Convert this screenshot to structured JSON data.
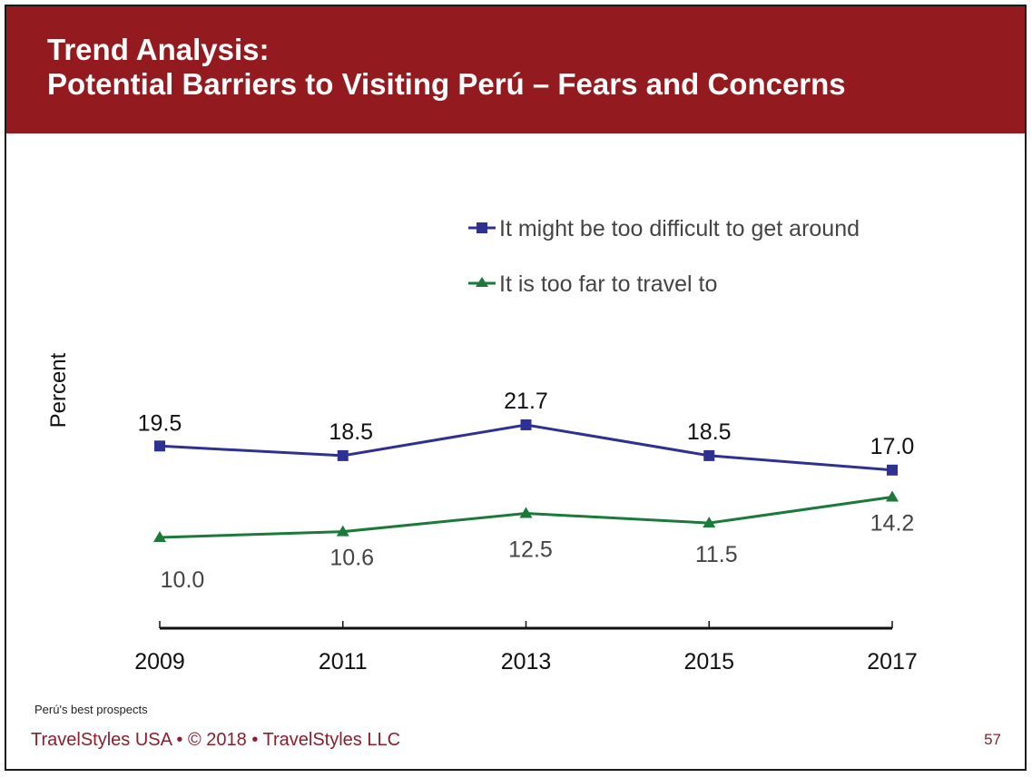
{
  "header": {
    "title_line1": "Trend Analysis:",
    "title_line2": "Potential Barriers to Visiting Perú – Fears and Concerns"
  },
  "colors": {
    "header_bg": "#931A1E",
    "series_blue": "#2E3192",
    "series_green": "#1B7A3A",
    "footer_text": "#8F1D2A"
  },
  "chart_data": {
    "type": "line",
    "title": "Potential Barriers to Visiting Perú – Fears and Concerns",
    "xlabel": "",
    "ylabel": "Percent",
    "x": [
      "2009",
      "2011",
      "2013",
      "2015",
      "2017"
    ],
    "ylim": [
      0,
      25
    ],
    "grid": false,
    "legend_position": "top-right",
    "series": [
      {
        "name": "It might be too difficult to get around",
        "marker": "square",
        "color": "#2E3192",
        "values": [
          19.5,
          18.5,
          21.7,
          18.5,
          17.0
        ],
        "labels": [
          "19.5",
          "18.5",
          "21.7",
          "18.5",
          "17.0"
        ]
      },
      {
        "name": "It is too far to travel to",
        "marker": "triangle",
        "color": "#1B7A3A",
        "values": [
          10.0,
          10.6,
          12.5,
          11.5,
          14.2
        ],
        "labels": [
          "10.0",
          "10.6",
          "12.5",
          "11.5",
          "14.2"
        ]
      }
    ]
  },
  "footer": {
    "note": "Perú's best prospects",
    "copyright": "TravelStyles USA • © 2018 • TravelStyles LLC",
    "page_number": "57"
  }
}
